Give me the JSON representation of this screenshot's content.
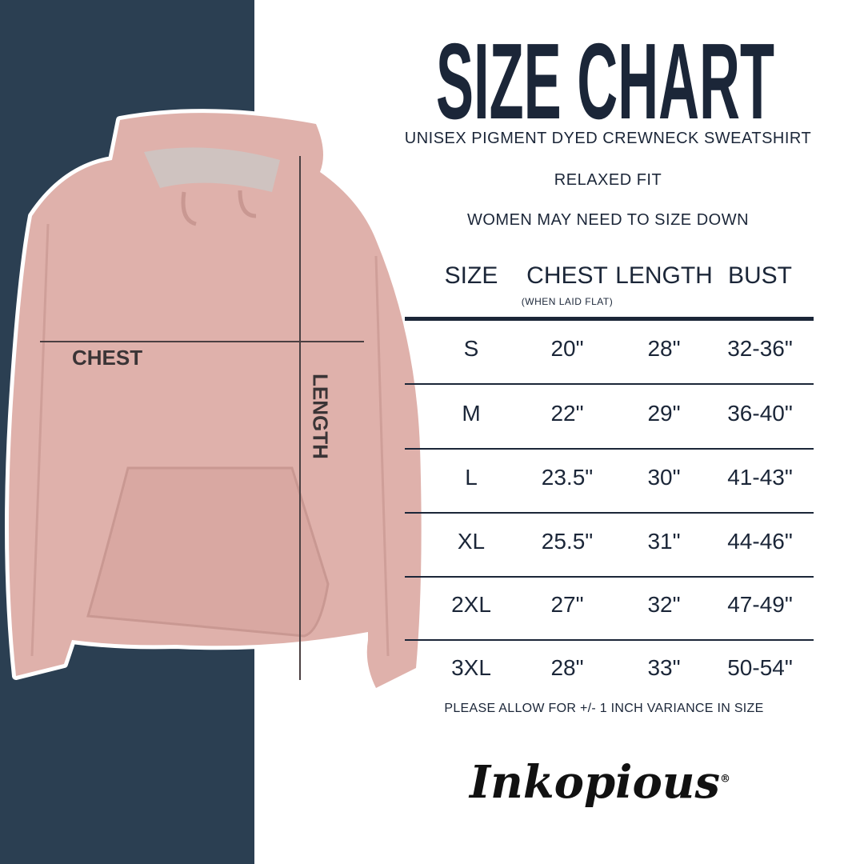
{
  "title": "SIZE CHART",
  "subtitles": [
    "UNISEX PIGMENT DYED CREWNECK SWEATSHIRT",
    "RELAXED FIT",
    "WOMEN MAY NEED TO SIZE DOWN"
  ],
  "table": {
    "headers": [
      "SIZE",
      "CHEST",
      "LENGTH",
      "BUST"
    ],
    "chest_note": "(WHEN LAID FLAT)",
    "rows": [
      [
        "S",
        "20\"",
        "28\"",
        "32-36\""
      ],
      [
        "M",
        "22\"",
        "29\"",
        "36-40\""
      ],
      [
        "L",
        "23.5\"",
        "30\"",
        "41-43\""
      ],
      [
        "XL",
        "25.5\"",
        "31\"",
        "44-46\""
      ],
      [
        "2XL",
        "27\"",
        "32\"",
        "47-49\""
      ],
      [
        "3XL",
        "28\"",
        "33\"",
        "50-54\""
      ]
    ]
  },
  "footer": "PLEASE ALLOW FOR +/- 1 INCH VARIANCE IN SIZE",
  "image_labels": {
    "chest": "CHEST",
    "length": "LENGTH"
  },
  "logo": {
    "text": "Inkopious",
    "mark": "®"
  },
  "colors": {
    "navy_panel": "#2b3f52",
    "text": "#1b2638",
    "garment": "#dfb1ab"
  }
}
